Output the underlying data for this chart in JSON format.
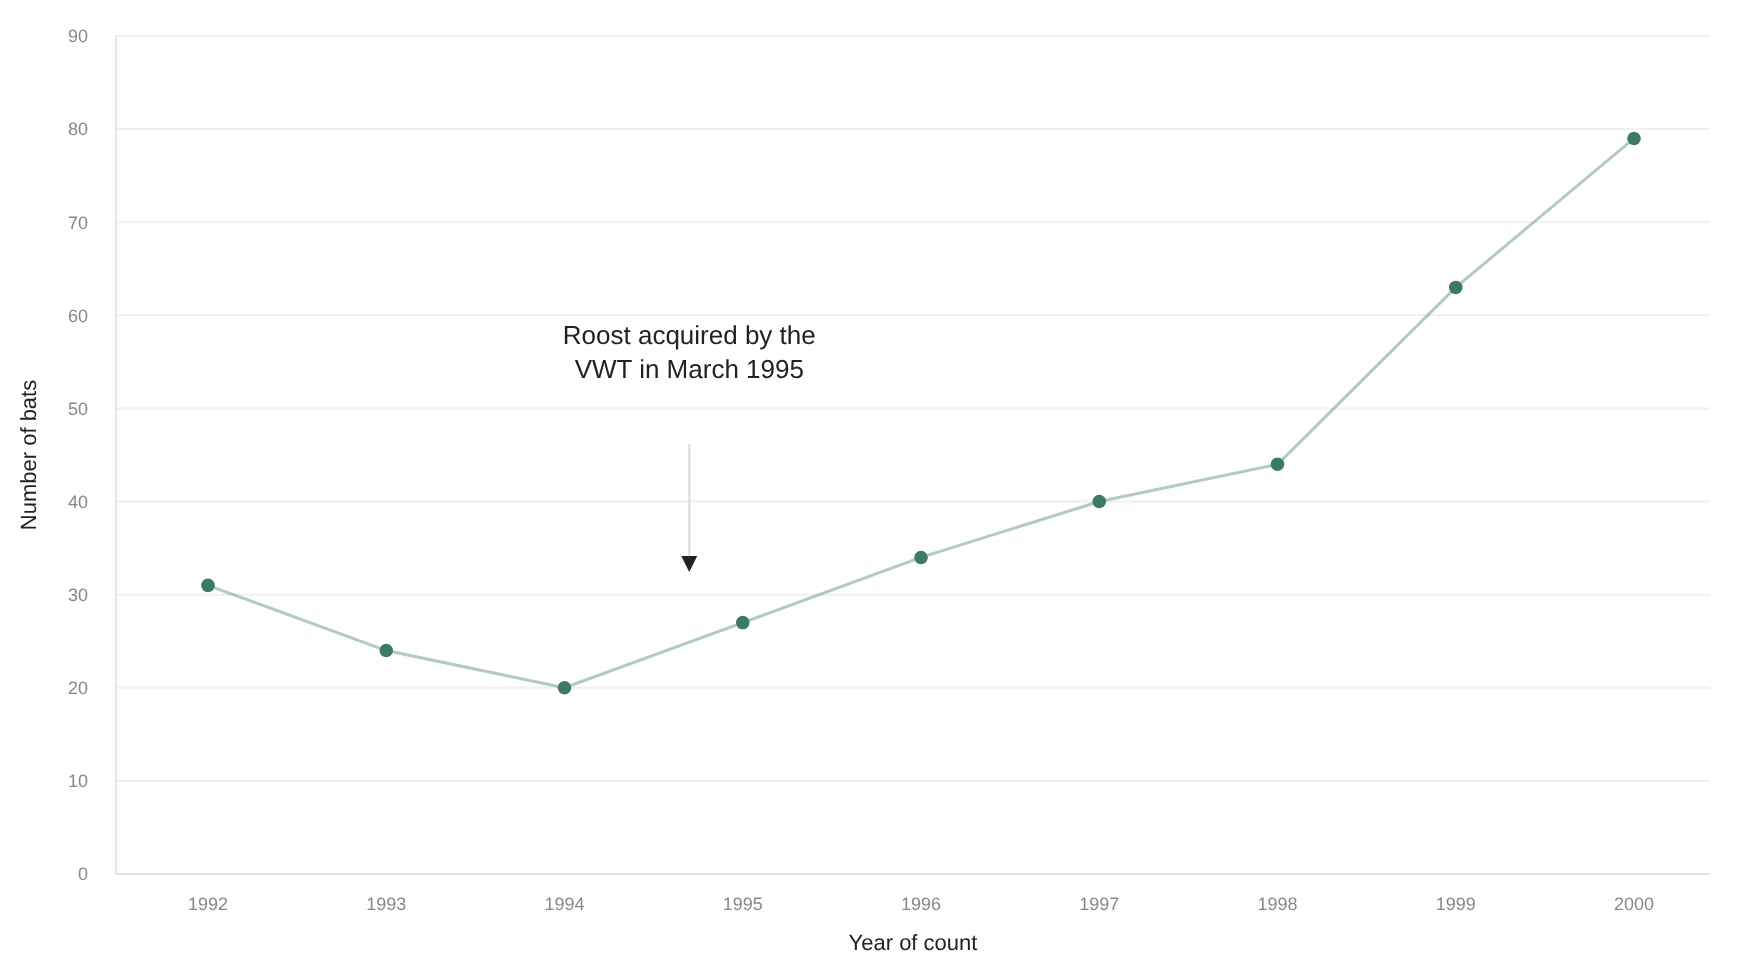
{
  "chart_data": {
    "type": "line",
    "xlabel": "Year of count",
    "ylabel": "Number of bats",
    "categories": [
      "1992",
      "1993",
      "1994",
      "1995",
      "1996",
      "1997",
      "1998",
      "1999",
      "2000"
    ],
    "series": [
      {
        "color": "#3d7a66",
        "values": [
          31,
          24,
          20,
          27,
          34,
          40,
          44,
          63,
          79
        ]
      }
    ],
    "ylim": [
      0,
      90
    ],
    "yticks": [
      0,
      10,
      20,
      30,
      40,
      50,
      60,
      70,
      80,
      90
    ],
    "grid": "y",
    "marker": "circle",
    "line_style": "solid",
    "annotations": [
      "Roost acquired by the VWT in March 1995"
    ]
  }
}
